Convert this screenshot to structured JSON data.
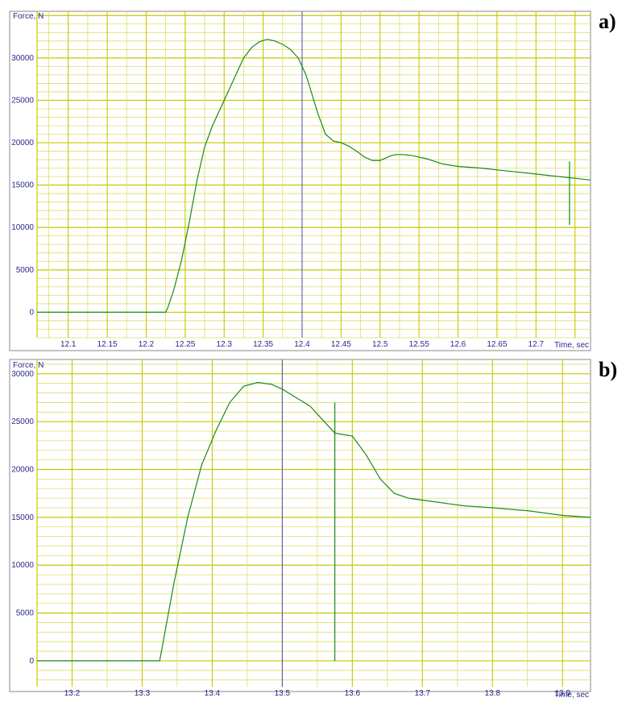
{
  "chart_data": [
    {
      "panel_label": "a)",
      "type": "line",
      "ylabel": "Force, N",
      "xlabel": "Time, sec",
      "xlim": [
        12.06,
        12.77
      ],
      "ylim": [
        -3000,
        35500
      ],
      "x_ticks": [
        "12.1",
        "12.15",
        "12.2",
        "12.25",
        "12.3",
        "12.35",
        "12.4",
        "12.45",
        "12.5",
        "12.55",
        "12.6",
        "12.65",
        "12.7"
      ],
      "y_ticks": [
        "0",
        "5000",
        "10000",
        "15000",
        "20000",
        "25000",
        "30000"
      ],
      "grid": true,
      "cursor_x": 12.4,
      "series": [
        {
          "x": [
            12.06,
            12.1,
            12.15,
            12.2,
            12.225,
            12.2275,
            12.235,
            12.245,
            12.255,
            12.265,
            12.275,
            12.285,
            12.295,
            12.305,
            12.315,
            12.325,
            12.335,
            12.345,
            12.355,
            12.365,
            12.375,
            12.385,
            12.395,
            12.4,
            12.405,
            12.41,
            12.42,
            12.43,
            12.44,
            12.45,
            12.46,
            12.47,
            12.48,
            12.49,
            12.5,
            12.51,
            12.515,
            12.52,
            12.53,
            12.54,
            12.545,
            12.55,
            12.555,
            12.56,
            12.57,
            12.58,
            12.6,
            12.63,
            12.66,
            12.69,
            12.72,
            12.75,
            12.77
          ],
          "y": [
            0,
            0,
            0,
            0,
            0,
            500,
            2500,
            6000,
            10500,
            15500,
            19500,
            22000,
            24000,
            26000,
            28000,
            30000,
            31200,
            31900,
            32200,
            32000,
            31600,
            31000,
            30000,
            29000,
            28000,
            26500,
            23500,
            21000,
            20200,
            20000,
            19600,
            19000,
            18300,
            17900,
            17900,
            18300,
            18500,
            18600,
            18600,
            18500,
            18400,
            18300,
            18200,
            18100,
            17800,
            17500,
            17200,
            17000,
            16700,
            16400,
            16100,
            15800,
            15600
          ]
        }
      ]
    },
    {
      "panel_label": "b)",
      "type": "line",
      "ylabel": "Force, N",
      "xlabel": "Time, sec",
      "xlim": [
        13.15,
        13.94
      ],
      "ylim": [
        -2700,
        31500
      ],
      "x_ticks": [
        "13.2",
        "13.3",
        "13.4",
        "13.5",
        "13.6",
        "13.7",
        "13.8",
        "13.9"
      ],
      "y_ticks": [
        "0",
        "5000",
        "10000",
        "15000",
        "20000",
        "25000",
        "30000"
      ],
      "grid": true,
      "cursor_x": 13.5,
      "series": [
        {
          "x": [
            13.15,
            13.2,
            13.25,
            13.3,
            13.325,
            13.345,
            13.365,
            13.385,
            13.405,
            13.425,
            13.445,
            13.465,
            13.485,
            13.5,
            13.52,
            13.54,
            13.56,
            13.575,
            13.6,
            13.62,
            13.64,
            13.66,
            13.68,
            13.7,
            13.72,
            13.74,
            13.76,
            13.78,
            13.8,
            13.85,
            13.9,
            13.94
          ],
          "y": [
            0,
            0,
            0,
            0,
            0,
            8000,
            15000,
            20500,
            24000,
            27000,
            28700,
            29100,
            28900,
            28400,
            27500,
            26600,
            25000,
            23800,
            23500,
            21500,
            19000,
            17500,
            17000,
            16800,
            16600,
            16400,
            16200,
            16100,
            16000,
            15700,
            15200,
            15000
          ]
        }
      ]
    }
  ]
}
